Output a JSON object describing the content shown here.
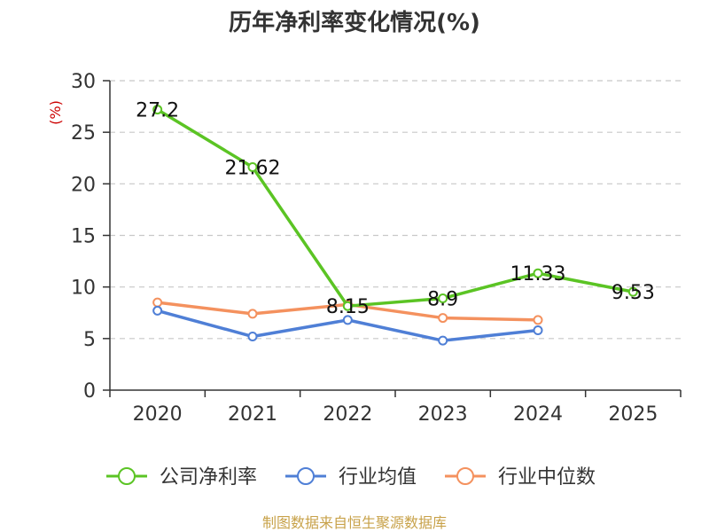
{
  "chart_data": {
    "type": "line",
    "title": "历年净利率变化情况(%)",
    "ylabel": "(%)",
    "categories": [
      "2020",
      "2021",
      "2022",
      "2023",
      "2024",
      "2025"
    ],
    "ylim": [
      0,
      30
    ],
    "yticks": [
      0,
      5,
      10,
      15,
      20,
      25,
      30
    ],
    "grid": true,
    "legend_position": "bottom",
    "series": [
      {
        "name": "公司净利率",
        "color": "#5bc424",
        "values": [
          27.2,
          21.62,
          8.15,
          8.9,
          11.33,
          9.53
        ],
        "labels": [
          "27.2",
          "21.62",
          "8.15",
          "8.9",
          "11.33",
          "9.53"
        ]
      },
      {
        "name": "行业均值",
        "color": "#4f7fd6",
        "values": [
          7.7,
          5.2,
          6.8,
          4.8,
          5.8,
          null
        ]
      },
      {
        "name": "行业中位数",
        "color": "#f4915e",
        "values": [
          8.5,
          7.4,
          8.3,
          7.0,
          6.8,
          null
        ]
      }
    ],
    "source": "制图数据来自恒生聚源数据库"
  }
}
